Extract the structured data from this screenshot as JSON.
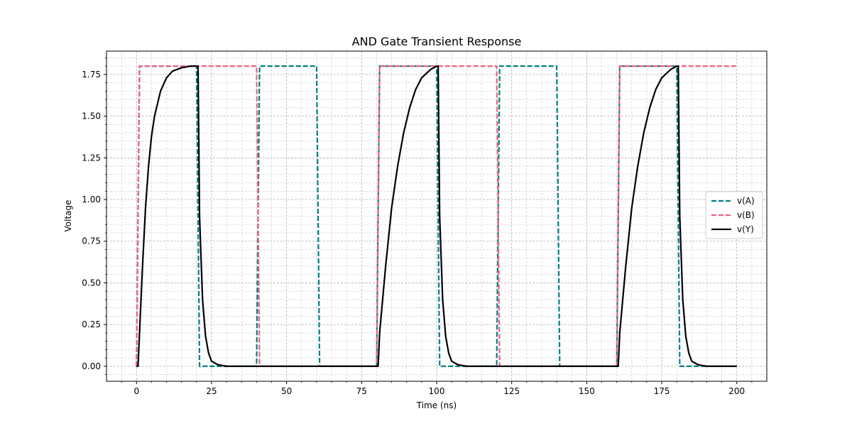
{
  "chart_data": {
    "type": "line",
    "title": "AND Gate Transient Response",
    "xlabel": "Time (ns)",
    "ylabel": "Voltage",
    "xlim": [
      -10,
      210
    ],
    "ylim": [
      -0.09,
      1.89
    ],
    "x_ticks": [
      0,
      25,
      50,
      75,
      100,
      125,
      150,
      175,
      200
    ],
    "x_tick_labels": [
      "0",
      "25",
      "50",
      "75",
      "100",
      "125",
      "150",
      "175",
      "200"
    ],
    "y_ticks": [
      0.0,
      0.25,
      0.5,
      0.75,
      1.0,
      1.25,
      1.5,
      1.75
    ],
    "y_tick_labels": [
      "0.00",
      "0.25",
      "0.50",
      "0.75",
      "1.00",
      "1.25",
      "1.50",
      "1.75"
    ],
    "grid": true,
    "legend_position": "center-right",
    "series": [
      {
        "name": "v(A)",
        "color": "#008080",
        "style": "dashed",
        "x": [
          0,
          1,
          20,
          21,
          40,
          41,
          60,
          61,
          80,
          81,
          100,
          101,
          120,
          121,
          140,
          141,
          160,
          161,
          180,
          181,
          200
        ],
        "y": [
          0,
          1.8,
          1.8,
          0,
          0,
          1.8,
          1.8,
          0,
          0,
          1.8,
          1.8,
          0,
          0,
          1.8,
          1.8,
          0,
          0,
          1.8,
          1.8,
          0,
          0
        ]
      },
      {
        "name": "v(B)",
        "color": "#f06080",
        "style": "dashed",
        "x": [
          0,
          1,
          40,
          41,
          80,
          81,
          120,
          121,
          160,
          161,
          200
        ],
        "y": [
          0,
          1.8,
          1.8,
          0,
          0,
          1.8,
          1.8,
          0,
          0,
          1.8,
          1.8
        ]
      },
      {
        "name": "v(Y)",
        "color": "#000000",
        "style": "solid",
        "x": [
          0,
          0.5,
          1,
          2,
          3,
          4,
          5,
          6,
          8,
          10,
          12,
          15,
          18,
          20,
          20.5,
          21,
          22,
          23,
          24,
          25,
          27,
          30,
          40,
          60,
          80,
          80.5,
          81,
          83,
          85,
          87,
          89,
          91,
          93,
          95,
          98,
          100,
          100.5,
          101,
          102,
          103,
          104,
          105,
          107,
          110,
          140,
          160,
          160.5,
          161,
          163,
          165,
          167,
          169,
          171,
          173,
          175,
          178,
          180,
          180.5,
          181,
          182,
          183,
          184,
          185,
          187,
          190,
          200
        ],
        "y": [
          0,
          0,
          0.2,
          0.6,
          0.95,
          1.2,
          1.38,
          1.5,
          1.65,
          1.73,
          1.77,
          1.79,
          1.8,
          1.8,
          1.8,
          0.9,
          0.4,
          0.18,
          0.08,
          0.03,
          0.01,
          0,
          0,
          0,
          0,
          0,
          0.2,
          0.6,
          0.95,
          1.2,
          1.4,
          1.55,
          1.66,
          1.73,
          1.78,
          1.8,
          1.8,
          0.9,
          0.4,
          0.18,
          0.08,
          0.03,
          0.01,
          0,
          0,
          0,
          0,
          0.2,
          0.6,
          0.95,
          1.2,
          1.4,
          1.55,
          1.66,
          1.73,
          1.78,
          1.8,
          1.8,
          0.9,
          0.4,
          0.18,
          0.08,
          0.03,
          0.01,
          0,
          0
        ]
      }
    ]
  }
}
